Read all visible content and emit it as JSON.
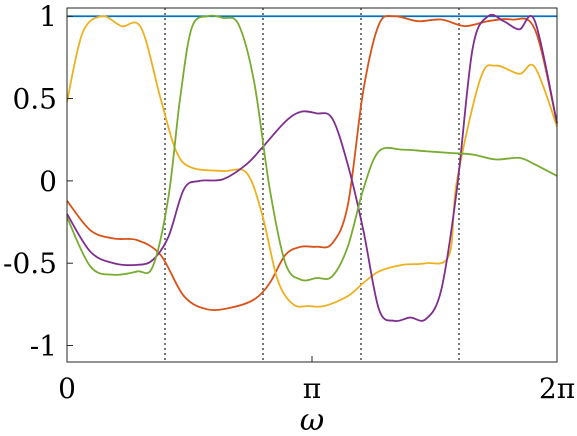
{
  "chart_data": {
    "type": "line",
    "title": "",
    "xlabel": "ω",
    "ylabel": "",
    "xlim": [
      0,
      6.2832
    ],
    "ylim": [
      -1.1,
      1.05
    ],
    "x_ticks": [
      {
        "value": 0,
        "label": "0"
      },
      {
        "value": 3.1416,
        "label": "π"
      },
      {
        "value": 6.2832,
        "label": "2π"
      }
    ],
    "y_ticks": [
      {
        "value": 1,
        "label": "1"
      },
      {
        "value": 0.5,
        "label": "0.5"
      },
      {
        "value": 0,
        "label": "0"
      },
      {
        "value": -0.5,
        "label": "-0.5"
      },
      {
        "value": -1,
        "label": "-1"
      }
    ],
    "vertical_lines": [
      1.2566,
      2.5133,
      3.7699,
      5.0265
    ],
    "grid": false,
    "legend": "none",
    "series": [
      {
        "color": "#0072BD",
        "x": [
          0,
          6.2832
        ],
        "y": [
          1.0,
          1.0
        ]
      },
      {
        "color": "#D95319",
        "x": [
          0,
          0.3,
          0.6,
          0.9,
          1.2,
          1.5,
          1.8,
          2.1,
          2.4,
          2.6,
          2.8,
          3.0,
          3.2,
          3.4,
          3.6,
          3.8,
          4.0,
          4.2,
          4.5,
          4.8,
          5.1,
          5.4,
          5.7,
          6.0,
          6.2832
        ],
        "y": [
          -0.12,
          -0.3,
          -0.35,
          -0.36,
          -0.45,
          -0.7,
          -0.78,
          -0.77,
          -0.72,
          -0.62,
          -0.45,
          -0.4,
          -0.4,
          -0.38,
          -0.15,
          0.55,
          0.95,
          1.0,
          0.97,
          0.98,
          0.94,
          0.97,
          0.98,
          0.92,
          0.35
        ]
      },
      {
        "color": "#EDB120",
        "x": [
          0,
          0.2,
          0.45,
          0.7,
          0.95,
          1.2,
          1.4,
          1.6,
          2.0,
          2.3,
          2.5,
          2.7,
          2.9,
          3.1,
          3.3,
          3.6,
          3.8,
          4.0,
          4.3,
          4.6,
          4.9,
          5.0,
          5.3,
          5.5,
          5.8,
          6.0,
          6.2832
        ],
        "y": [
          0.48,
          0.9,
          1.0,
          0.94,
          0.93,
          0.5,
          0.18,
          0.08,
          0.06,
          0.05,
          -0.2,
          -0.6,
          -0.75,
          -0.76,
          -0.76,
          -0.7,
          -0.62,
          -0.55,
          -0.51,
          -0.5,
          -0.45,
          0.0,
          0.62,
          0.7,
          0.65,
          0.69,
          0.33
        ]
      },
      {
        "color": "#7E2F8E",
        "x": [
          0,
          0.3,
          0.6,
          0.9,
          1.1,
          1.3,
          1.5,
          1.7,
          2.0,
          2.3,
          2.5,
          2.8,
          3.0,
          3.2,
          3.4,
          3.6,
          3.8,
          4.0,
          4.2,
          4.4,
          4.6,
          4.8,
          5.0,
          5.2,
          5.4,
          5.6,
          5.8,
          6.0,
          6.2832
        ],
        "y": [
          -0.2,
          -0.43,
          -0.5,
          -0.51,
          -0.48,
          -0.34,
          -0.05,
          0.0,
          0.01,
          0.1,
          0.2,
          0.36,
          0.42,
          0.41,
          0.38,
          0.1,
          -0.3,
          -0.78,
          -0.85,
          -0.83,
          -0.84,
          -0.66,
          -0.05,
          0.8,
          1.0,
          0.97,
          0.92,
          0.97,
          0.35
        ]
      },
      {
        "color": "#77AC30",
        "x": [
          0,
          0.3,
          0.6,
          0.9,
          1.1,
          1.3,
          1.45,
          1.6,
          1.8,
          2.0,
          2.2,
          2.4,
          2.6,
          2.8,
          3.0,
          3.2,
          3.4,
          3.6,
          3.8,
          4.0,
          4.3,
          4.6,
          4.9,
          5.2,
          5.5,
          5.8,
          6.0,
          6.2832
        ],
        "y": [
          -0.22,
          -0.52,
          -0.57,
          -0.55,
          -0.52,
          -0.1,
          0.5,
          0.93,
          1.0,
          0.99,
          0.95,
          0.6,
          -0.05,
          -0.5,
          -0.6,
          -0.59,
          -0.58,
          -0.4,
          -0.05,
          0.18,
          0.19,
          0.18,
          0.17,
          0.16,
          0.13,
          0.14,
          0.1,
          0.03
        ]
      }
    ]
  }
}
